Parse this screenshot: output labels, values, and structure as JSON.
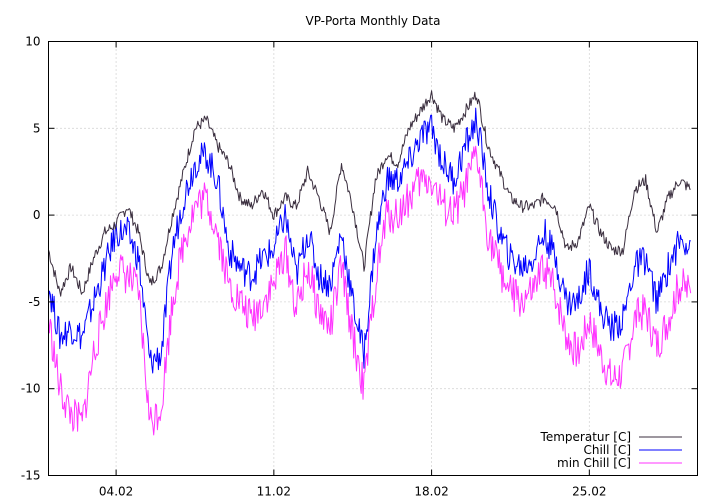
{
  "chart_data": {
    "type": "line",
    "title": "VP-Porta Monthly Data",
    "xlabel": "",
    "ylabel": "",
    "ylim": [
      -15,
      10
    ],
    "yticks": [
      -15,
      -10,
      -5,
      0,
      5,
      10
    ],
    "xlim": [
      0,
      28.8
    ],
    "xticks": [
      {
        "label": "04.02",
        "day": 3
      },
      {
        "label": "11.02",
        "day": 10
      },
      {
        "label": "18.02",
        "day": 17
      },
      {
        "label": "25.02",
        "day": 24
      }
    ],
    "grid": true,
    "legend_position": "bottom-right",
    "series": [
      {
        "name": "Temperatur [C]",
        "color": "#3b2f3f",
        "x": [
          0,
          0.5,
          1,
          1.5,
          2,
          2.5,
          3,
          3.5,
          4,
          4.5,
          5,
          5.5,
          6,
          6.5,
          7,
          7.5,
          8,
          8.5,
          9,
          9.5,
          10,
          10.5,
          11,
          11.5,
          12,
          12.5,
          13,
          13.5,
          14,
          14.5,
          15,
          15.5,
          16,
          16.5,
          17,
          17.5,
          18,
          18.5,
          19,
          19.5,
          20,
          20.5,
          21,
          21.5,
          22,
          22.5,
          23,
          23.5,
          24,
          24.5,
          25,
          25.5,
          26,
          26.5,
          27,
          27.5,
          28,
          28.5
        ],
        "values": [
          -2,
          -4.5,
          -3,
          -4.5,
          -2.5,
          -1,
          -0.5,
          0.5,
          -1,
          -4,
          -3,
          0,
          2.5,
          5,
          5.5,
          4,
          3,
          1,
          0.5,
          1.5,
          0,
          1,
          0.5,
          2.5,
          1,
          -1,
          3,
          0.5,
          -3,
          2,
          3.5,
          3,
          5,
          6,
          7,
          5.5,
          5,
          6,
          7,
          4,
          2.5,
          1,
          0.5,
          0.5,
          1,
          0.5,
          -2,
          -1.5,
          0.5,
          -1,
          -2,
          -2,
          1.5,
          2,
          -1,
          1,
          2,
          1.5
        ]
      },
      {
        "name": "Chill [C]",
        "color": "#0000ff",
        "x": [
          0,
          0.5,
          1,
          1.5,
          2,
          2.5,
          3,
          3.5,
          4,
          4.5,
          5,
          5.5,
          6,
          6.5,
          7,
          7.5,
          8,
          8.5,
          9,
          9.5,
          10,
          10.5,
          11,
          11.5,
          12,
          12.5,
          13,
          13.5,
          14,
          14.5,
          15,
          15.5,
          16,
          16.5,
          17,
          17.5,
          18,
          18.5,
          19,
          19.5,
          20,
          20.5,
          21,
          21.5,
          22,
          22.5,
          23,
          23.5,
          24,
          24.5,
          25,
          25.5,
          26,
          26.5,
          27,
          27.5,
          28,
          28.5
        ],
        "values": [
          -4,
          -7,
          -6.5,
          -7,
          -5,
          -3,
          -1,
          -1,
          -2.5,
          -8.5,
          -8,
          -2,
          1,
          3,
          3.5,
          2,
          -2,
          -3,
          -3.5,
          -2.5,
          -2,
          0,
          -3.5,
          -1,
          -3.5,
          -4,
          -1,
          -5,
          -8,
          -1.5,
          2,
          2,
          3,
          4.5,
          5,
          3,
          2,
          4,
          5.5,
          1.5,
          -1,
          -2.5,
          -3,
          -2.5,
          -1,
          -2.5,
          -5,
          -5,
          -3,
          -5.5,
          -6.5,
          -6,
          -3,
          -2.5,
          -5,
          -3,
          -1.5,
          -1.5
        ]
      },
      {
        "name": "min Chill [C]",
        "color": "#ff33ff",
        "x": [
          0,
          0.5,
          1,
          1.5,
          2,
          2.5,
          3,
          3.5,
          4,
          4.5,
          5,
          5.5,
          6,
          6.5,
          7,
          7.5,
          8,
          8.5,
          9,
          9.5,
          10,
          10.5,
          11,
          11.5,
          12,
          12.5,
          13,
          13.5,
          14,
          14.5,
          15,
          15.5,
          16,
          16.5,
          17,
          17.5,
          18,
          18.5,
          19,
          19.5,
          20,
          20.5,
          21,
          21.5,
          22,
          22.5,
          23,
          23.5,
          24,
          24.5,
          25,
          25.5,
          26,
          26.5,
          27,
          27.5,
          28,
          28.5
        ],
        "values": [
          -6,
          -10,
          -11.5,
          -12,
          -8,
          -5.5,
          -3,
          -3.5,
          -4.5,
          -12,
          -11,
          -5,
          -1.5,
          0.5,
          1,
          -1,
          -4,
          -5,
          -6,
          -5,
          -4,
          -2,
          -5.5,
          -3,
          -5.5,
          -6.5,
          -3,
          -7,
          -10,
          -4,
          0,
          0,
          1,
          2,
          2,
          0.5,
          0,
          1.5,
          3.5,
          -1,
          -3,
          -4.5,
          -5,
          -4.5,
          -3,
          -4.5,
          -7,
          -8,
          -6,
          -8,
          -9.5,
          -9,
          -6,
          -5.5,
          -7.5,
          -6,
          -4,
          -4.5
        ]
      }
    ]
  }
}
